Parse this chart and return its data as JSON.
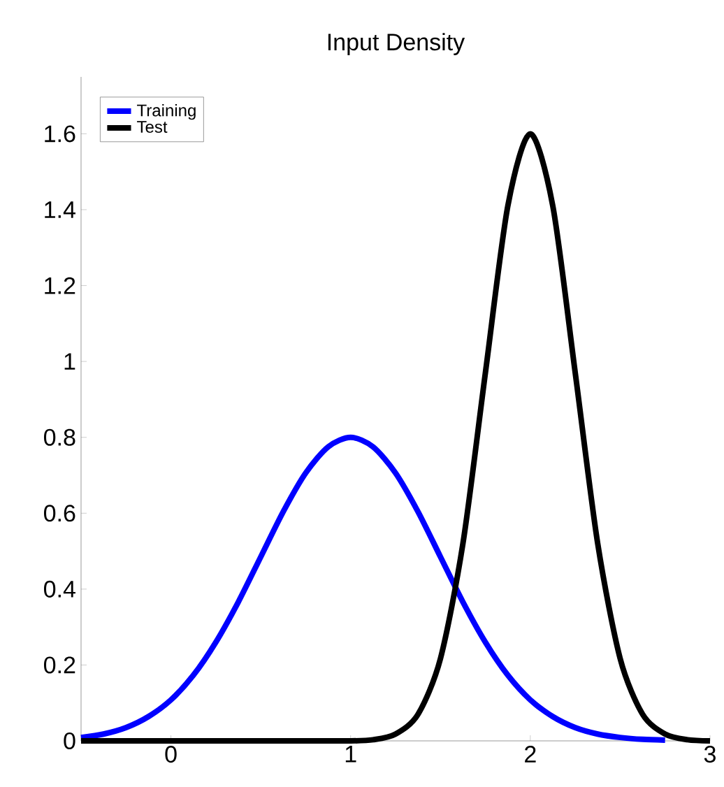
{
  "chart_data": {
    "type": "line",
    "title": "Input Density",
    "xlim": [
      -0.5,
      3
    ],
    "xticks": [
      0,
      1,
      2,
      3
    ],
    "ylim": [
      0,
      1.75
    ],
    "yticks": [
      0,
      0.2,
      0.4,
      0.6,
      0.8,
      1,
      1.2,
      1.4,
      1.6
    ],
    "legend": "top left",
    "grid": false,
    "line_style": "solid",
    "marker": "none",
    "series": [
      {
        "name": "Training",
        "color": "#0000ff",
        "x": [
          -0.5,
          -0.375,
          -0.25,
          -0.125,
          0,
          0.125,
          0.25,
          0.375,
          0.5,
          0.625,
          0.75,
          0.875,
          1,
          1.125,
          1.25,
          1.375,
          1.5,
          1.625,
          1.75,
          1.875,
          2,
          2.125,
          2.25,
          2.375,
          2.5,
          2.625,
          2.75
        ],
        "values": [
          0.009,
          0.018,
          0.035,
          0.064,
          0.108,
          0.173,
          0.26,
          0.366,
          0.485,
          0.604,
          0.706,
          0.775,
          0.8,
          0.775,
          0.706,
          0.604,
          0.485,
          0.366,
          0.26,
          0.173,
          0.108,
          0.064,
          0.035,
          0.018,
          0.009,
          0.004,
          0.002
        ]
      },
      {
        "name": "Test",
        "color": "#000000",
        "x": [
          -0.5,
          0,
          0.5,
          1,
          1.125,
          1.25,
          1.375,
          1.5,
          1.625,
          1.75,
          1.875,
          2,
          2.125,
          2.25,
          2.375,
          2.5,
          2.625,
          2.75,
          2.875,
          3
        ],
        "values": [
          0,
          0,
          0,
          0,
          0.003,
          0.018,
          0.07,
          0.217,
          0.52,
          0.97,
          1.41,
          1.6,
          1.41,
          0.97,
          0.52,
          0.217,
          0.07,
          0.018,
          0.003,
          0
        ]
      }
    ]
  }
}
